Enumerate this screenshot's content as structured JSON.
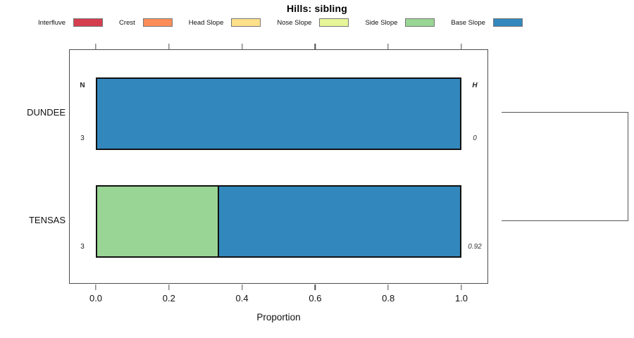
{
  "title": "Hills: sibling",
  "legend": {
    "items": [
      {
        "label": "Interfluve",
        "color": "#d53e4f"
      },
      {
        "label": "Crest",
        "color": "#fc8d59"
      },
      {
        "label": "Head Slope",
        "color": "#fee08b"
      },
      {
        "label": "Nose Slope",
        "color": "#e6f598"
      },
      {
        "label": "Side Slope",
        "color": "#99d594"
      },
      {
        "label": "Base Slope",
        "color": "#3288bd"
      }
    ]
  },
  "chart_data": {
    "type": "bar",
    "orientation": "horizontal",
    "stacked": true,
    "title": "Hills: sibling",
    "xlabel": "Proportion",
    "xlim": [
      0,
      1
    ],
    "xticks": [
      "0.0",
      "0.2",
      "0.4",
      "0.6",
      "0.8",
      "1.0"
    ],
    "grid": false,
    "legend_position": "top",
    "categories": [
      "DUNDEE",
      "TENSAS"
    ],
    "series": [
      {
        "name": "Interfluve",
        "color": "#d53e4f",
        "values": [
          0,
          0
        ]
      },
      {
        "name": "Crest",
        "color": "#fc8d59",
        "values": [
          0,
          0
        ]
      },
      {
        "name": "Head Slope",
        "color": "#fee08b",
        "values": [
          0,
          0
        ]
      },
      {
        "name": "Nose Slope",
        "color": "#e6f598",
        "values": [
          0,
          0
        ]
      },
      {
        "name": "Side Slope",
        "color": "#99d594",
        "values": [
          0,
          0.333
        ]
      },
      {
        "name": "Base Slope",
        "color": "#3288bd",
        "values": [
          1.0,
          0.667
        ]
      }
    ],
    "annotations": {
      "n_header": "N",
      "h_header": "H",
      "rows": [
        {
          "label": "DUNDEE",
          "n": "3",
          "h": "0"
        },
        {
          "label": "TENSAS",
          "n": "3",
          "h": "0.92"
        }
      ]
    },
    "dendrogram": {
      "side": "right",
      "type": "bracket",
      "connects": [
        "DUNDEE",
        "TENSAS"
      ]
    }
  }
}
